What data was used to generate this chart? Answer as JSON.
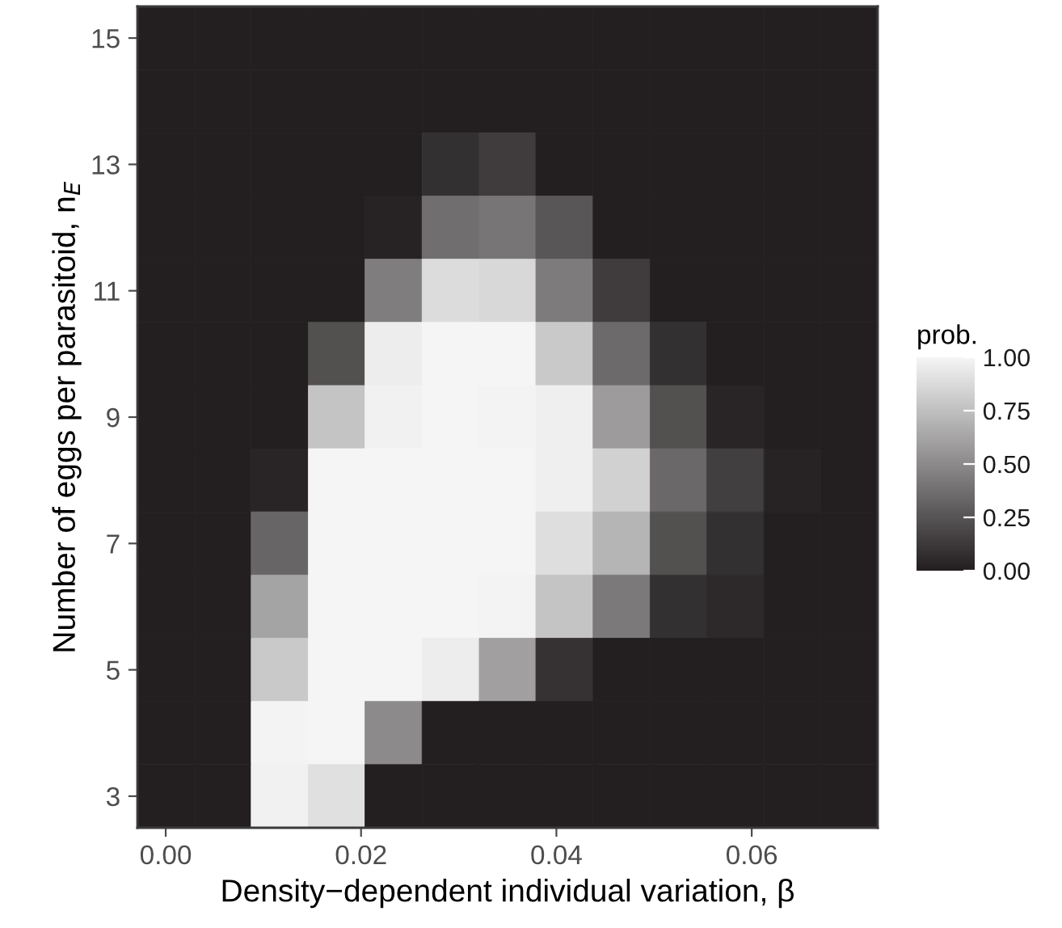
{
  "chart_data": {
    "type": "heatmap",
    "xlabel": "Density−dependent individual variation, β",
    "ylabel": "Number of eggs per parasitoid, n$_{E}$",
    "clabel": "prob.",
    "x": [
      0,
      0.0058,
      0.0117,
      0.0175,
      0.0233,
      0.0292,
      0.035,
      0.0408,
      0.0467,
      0.0525,
      0.0583,
      0.0642,
      0.07
    ],
    "y_categories": [
      "15",
      null,
      "13",
      null,
      "11",
      null,
      "9",
      null,
      "7",
      null,
      "5",
      null,
      "3"
    ],
    "cells": [
      [
        0,
        0,
        0,
        0,
        0,
        0,
        0,
        0,
        0,
        0,
        0,
        0,
        0
      ],
      [
        0,
        0,
        0,
        0,
        0,
        0,
        0,
        0,
        0,
        0,
        0,
        0,
        0
      ],
      [
        0,
        0,
        0,
        0,
        0,
        0.08,
        0.14,
        0,
        0,
        0,
        0,
        0,
        0
      ],
      [
        0,
        0,
        0,
        0,
        0.02,
        0.37,
        0.4,
        0.26,
        0,
        0,
        0,
        0,
        0
      ],
      [
        0,
        0,
        0,
        0,
        0.44,
        0.88,
        0.86,
        0.43,
        0.14,
        0,
        0,
        0,
        0
      ],
      [
        0,
        0,
        0,
        0.23,
        0.96,
        1,
        1,
        0.79,
        0.35,
        0.08,
        0,
        0,
        0
      ],
      [
        0,
        0,
        0,
        0.77,
        0.98,
        1,
        0.99,
        0.97,
        0.58,
        0.23,
        0.03,
        0,
        0
      ],
      [
        0,
        0,
        0.03,
        1,
        1,
        1,
        1,
        0.97,
        0.83,
        0.34,
        0.15,
        0.02,
        0
      ],
      [
        0,
        0,
        0.33,
        1,
        1,
        1,
        1,
        0.89,
        0.7,
        0.23,
        0.08,
        0,
        0
      ],
      [
        0,
        0,
        0.62,
        1,
        1,
        1,
        0.99,
        0.77,
        0.42,
        0.08,
        0.05,
        0,
        0
      ],
      [
        0,
        0,
        0.79,
        1,
        1,
        0.96,
        0.6,
        0.09,
        0,
        0,
        0,
        0,
        0
      ],
      [
        0,
        0,
        0.99,
        1,
        0.5,
        0,
        0,
        0,
        0,
        0,
        0,
        0,
        0
      ],
      [
        0,
        0,
        0.98,
        0.9,
        0,
        0,
        0,
        0,
        0,
        0,
        0,
        0,
        0
      ]
    ],
    "colors": [
      "#231f20",
      "#f5f5f5"
    ],
    "xlim": [
      -0.0029,
      0.0729
    ],
    "xticks": [
      {
        "value": 0,
        "label": "0.00"
      },
      {
        "value": 0.02,
        "label": "0.02"
      },
      {
        "value": 0.04,
        "label": "0.04"
      },
      {
        "value": 0.06,
        "label": "0.06"
      }
    ],
    "clim": [
      0,
      1
    ],
    "cticks": [
      {
        "value": 0,
        "label": "0.00"
      },
      {
        "value": 0.25,
        "label": "0.25"
      },
      {
        "value": 0.5,
        "label": "0.50"
      },
      {
        "value": 0.75,
        "label": "0.75"
      },
      {
        "value": 1,
        "label": "1.00"
      }
    ]
  }
}
